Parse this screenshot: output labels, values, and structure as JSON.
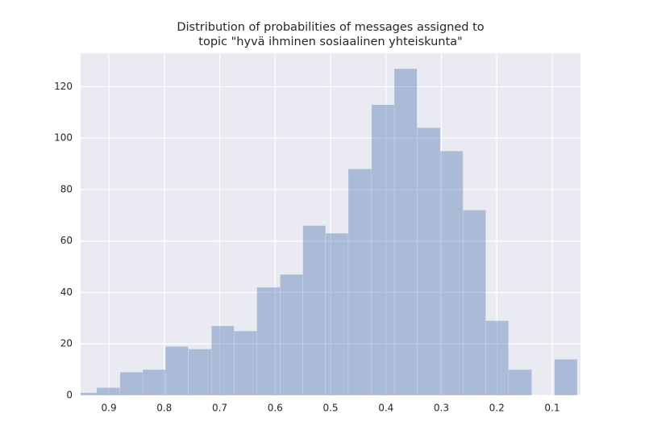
{
  "chart_data": {
    "type": "histogram",
    "title": [
      "Distribution of probabilities of messages assigned to",
      "topic \"hyvä ihminen sosiaalinen yhteiskunta\""
    ],
    "bins": [
      0.963,
      0.922,
      0.88,
      0.839,
      0.798,
      0.757,
      0.715,
      0.674,
      0.633,
      0.591,
      0.55,
      0.509,
      0.468,
      0.426,
      0.385,
      0.344,
      0.302,
      0.261,
      0.22,
      0.179,
      0.137,
      0.096,
      0.055
    ],
    "values": [
      1,
      3,
      9,
      10,
      19,
      18,
      27,
      25,
      42,
      47,
      66,
      63,
      88,
      113,
      127,
      104,
      95,
      72,
      29,
      10,
      0,
      14
    ],
    "color": "#4c72b0",
    "xlim": [
      0.951,
      0.049
    ],
    "xticks": [
      0.9,
      0.8,
      0.7,
      0.6,
      0.5,
      0.4,
      0.3,
      0.2,
      0.1
    ],
    "ylim": [
      0,
      133
    ],
    "yticks": [
      0,
      20,
      40,
      60,
      80,
      100,
      120
    ],
    "grid": true
  }
}
